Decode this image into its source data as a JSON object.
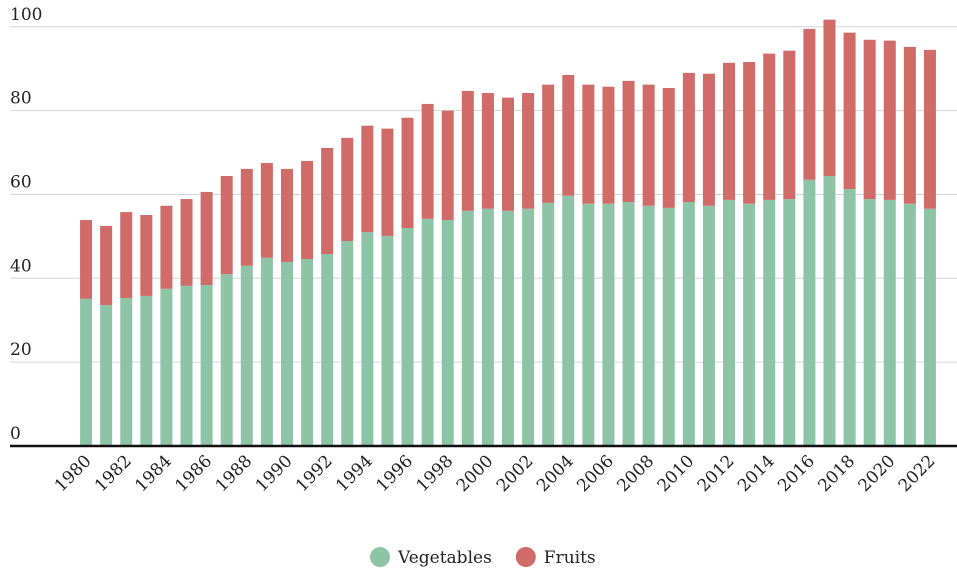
{
  "chart_data": {
    "type": "stacked_bar",
    "categories": [
      "1980",
      null,
      "1982",
      null,
      "1984",
      null,
      "1986",
      null,
      "1988",
      null,
      "1990",
      null,
      "1992",
      null,
      "1994",
      null,
      "1996",
      null,
      "1998",
      null,
      "2000",
      null,
      "2002",
      null,
      "2004",
      null,
      "2006",
      null,
      "2008",
      null,
      "2010",
      null,
      "2012",
      null,
      "2014",
      null,
      "2016",
      null,
      "2018",
      null,
      "2020",
      null,
      "2022"
    ],
    "series": [
      {
        "name": "Vegetables",
        "color": "#8dc4a6",
        "values": [
          35.1,
          33.6,
          35.3,
          35.8,
          37.5,
          38.2,
          38.4,
          41,
          43,
          44.9,
          43.9,
          44.6,
          45.8,
          48.9,
          51,
          50.1,
          52,
          54.2,
          53.9,
          56.1,
          56.6,
          56.1,
          56.6,
          58,
          59.7,
          57.8,
          57.8,
          58.2,
          57.3,
          56.8,
          58.2,
          57.3,
          58.7,
          57.8,
          58.7,
          58.9,
          63.5,
          64.4,
          61.3,
          58.9,
          58.7,
          57.8,
          56.6
        ]
      },
      {
        "name": "Fruits",
        "color": "#d06b68",
        "values": [
          18.8,
          18.9,
          20.5,
          19.3,
          19.8,
          20.7,
          22.2,
          23.4,
          23.1,
          22.6,
          22.2,
          23.4,
          25.3,
          24.6,
          25.4,
          25.6,
          26.3,
          27.4,
          26.1,
          28.6,
          27.6,
          27,
          27.6,
          28.2,
          28.8,
          28.4,
          27.9,
          28.9,
          28.9,
          28.6,
          30.8,
          31.5,
          32.7,
          33.8,
          34.9,
          35.4,
          36,
          37.3,
          37.3,
          38,
          38,
          37.4,
          37.9
        ]
      }
    ],
    "ylim": [
      0,
      104
    ],
    "yticks": [
      0,
      20,
      40,
      60,
      80,
      100
    ],
    "grid": true,
    "legend": "bottom"
  }
}
